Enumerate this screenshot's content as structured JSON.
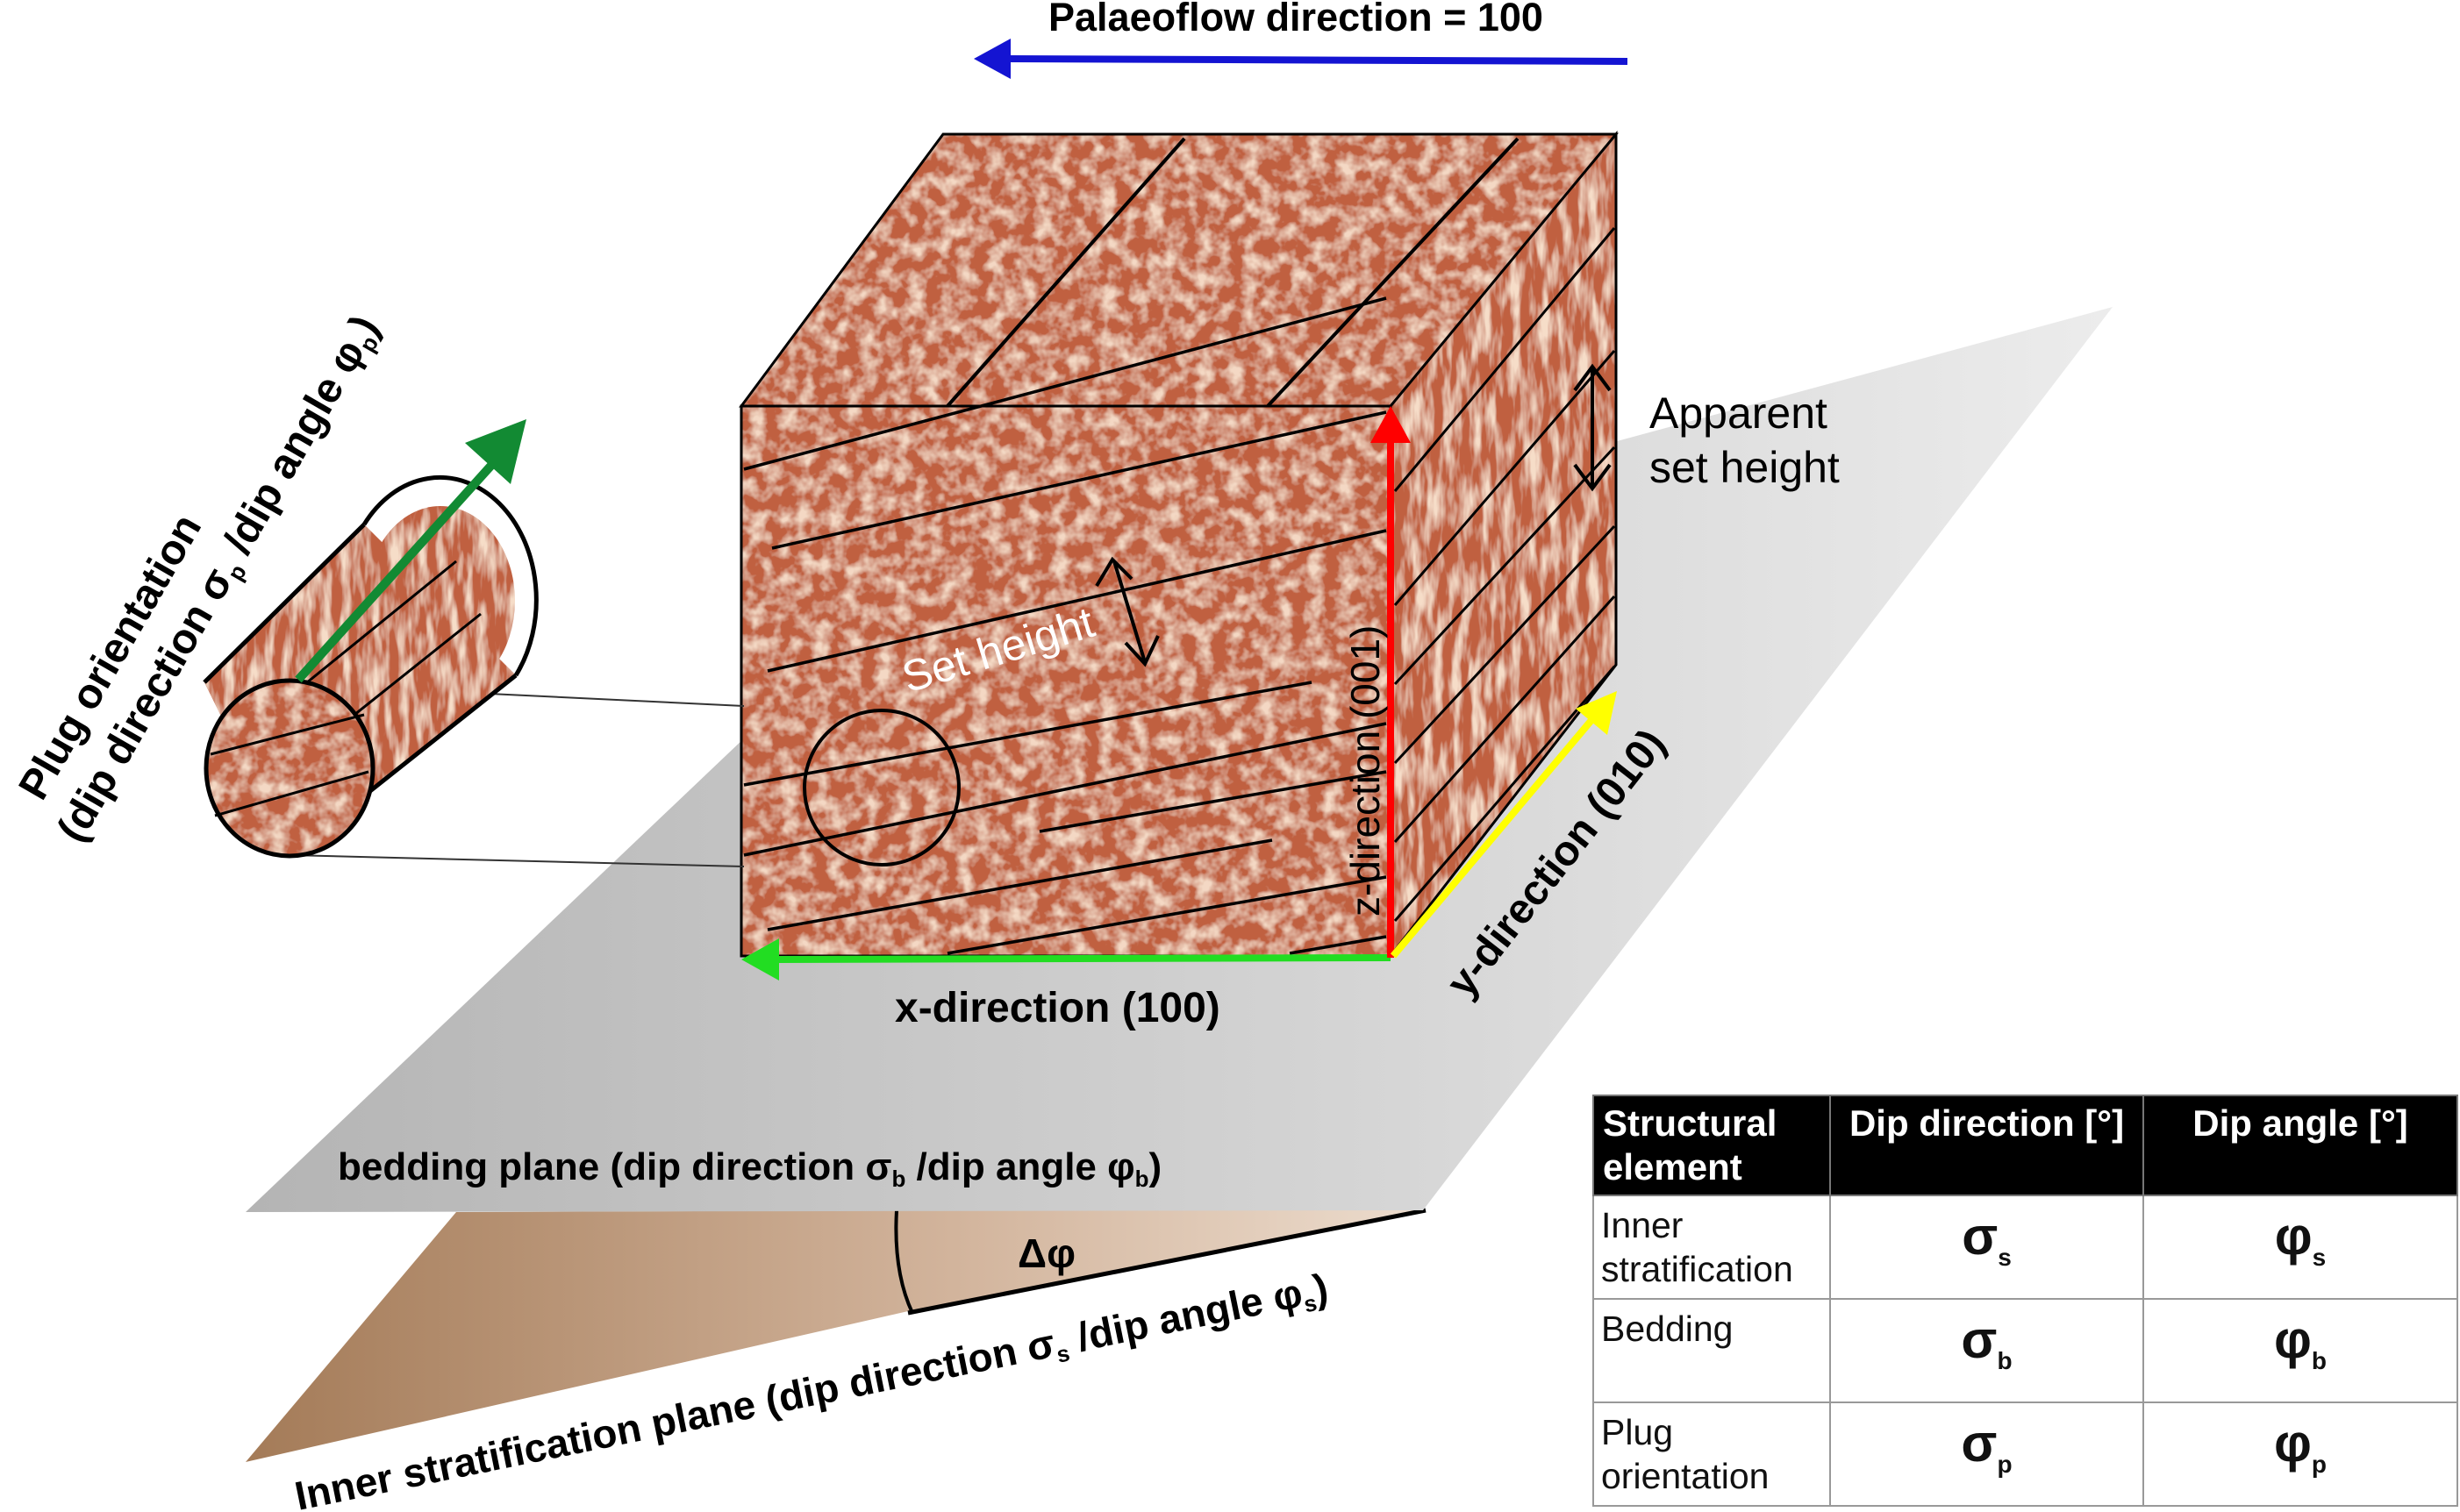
{
  "labels": {
    "palaeoflow": "Palaeoflow direction = 100",
    "plug_line1": "Plug orientation",
    "plug_line2_a": "(dip direction σ",
    "plug_line2_sub": "p",
    "plug_line2_b": " /dip angle φ",
    "plug_line2_sub2": "p",
    "plug_line2_c": ")",
    "apparent_1": "Apparent",
    "apparent_2": "set height",
    "set_height": "Set height",
    "z_dir": "z-direction (001)",
    "y_dir": "y-direction (010)",
    "x_dir": "x-direction (100)",
    "bedding_a": "bedding plane (dip direction σ",
    "bedding_sub1": "b",
    "bedding_b": " /dip angle φ",
    "bedding_sub2": "b",
    "bedding_c": ")",
    "delta": "Δφ",
    "inner_a": "Inner stratification plane (dip direction σ",
    "inner_sub1": "s",
    "inner_b": " /dip angle φ",
    "inner_sub2": "s",
    "inner_c": ")"
  },
  "colors": {
    "palaeoflow_arrow": "#1414d2",
    "plug_arrow": "#128a33",
    "z_arrow": "#ff0000",
    "y_arrow": "#ffff00",
    "x_arrow": "#22dd22",
    "rock_base": "#c0603f",
    "rock_light": "#e6b08c",
    "bedding_plane": "#cfcfcf",
    "inner_plane": "#c49a78"
  },
  "table": {
    "headers": [
      "Structural element",
      "Dip direction [°]",
      "Dip angle [°]"
    ],
    "rows": [
      {
        "element": "Inner stratification",
        "dir": "σ",
        "dir_sub": "s",
        "angle": "φ",
        "angle_sub": "s"
      },
      {
        "element": "Bedding",
        "dir": "σ",
        "dir_sub": "b",
        "angle": "φ",
        "angle_sub": "b"
      },
      {
        "element": "Plug orientation",
        "dir": "σ",
        "dir_sub": "p",
        "angle": "φ",
        "angle_sub": "p"
      }
    ]
  }
}
